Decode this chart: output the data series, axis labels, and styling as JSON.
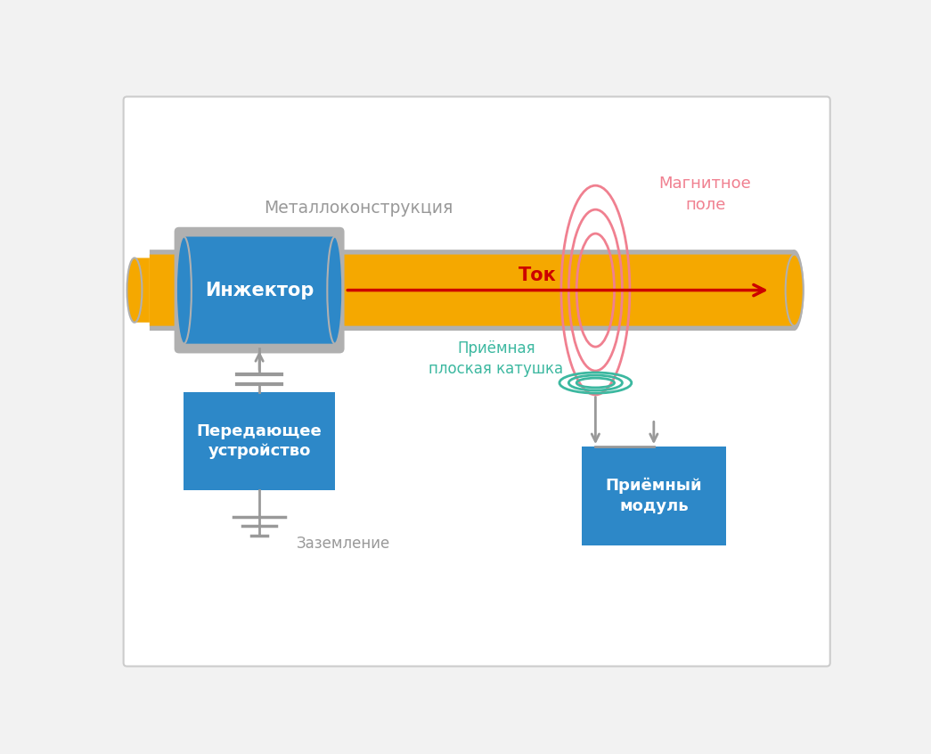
{
  "bg_color": "#f2f2f2",
  "border_color": "#cccccc",
  "title_metallokonstr": "Металлоконструкция",
  "title_metallokonstr_color": "#999999",
  "pipe_color": "#f5a800",
  "pipe_border_color": "#b0b0b0",
  "injector_color": "#2d88c8",
  "injector_text": "Инжектор",
  "tok_text": "Ток",
  "tok_color": "#cc0000",
  "magnet_text": "Магнитное\nполе",
  "magnet_color": "#f08090",
  "coil_text": "Приёмная\nплоская катушка",
  "coil_color": "#3cb8a0",
  "tx_text": "Передающее\nустройство",
  "tx_color": "#2d88c8",
  "rx_text": "Приёмный\nмодуль",
  "rx_color": "#2d88c8",
  "ground_text": "Заземление",
  "ground_color": "#999999",
  "connector_color": "#999999"
}
